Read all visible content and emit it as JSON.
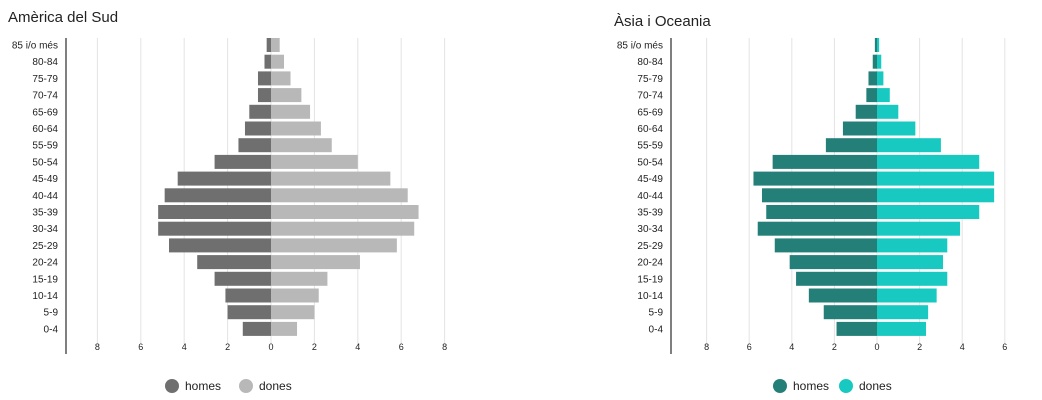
{
  "chart_data": [
    {
      "type": "bar",
      "subtype": "population-pyramid",
      "title": "Amèrica del Sud",
      "categories": [
        "85 i/o més",
        "80-84",
        "75-79",
        "70-74",
        "65-69",
        "60-64",
        "55-59",
        "50-54",
        "45-49",
        "40-44",
        "35-39",
        "30-34",
        "25-29",
        "20-24",
        "15-19",
        "10-14",
        "5-9",
        "0-4"
      ],
      "series": [
        {
          "name": "homes",
          "color": "#6f6f6f",
          "values": [
            0.2,
            0.3,
            0.6,
            0.6,
            1.0,
            1.2,
            1.5,
            2.6,
            4.3,
            4.9,
            5.2,
            5.2,
            4.7,
            3.4,
            2.6,
            2.1,
            2.0,
            1.3
          ]
        },
        {
          "name": "dones",
          "color": "#b8b8b8",
          "values": [
            0.4,
            0.6,
            0.9,
            1.4,
            1.8,
            2.3,
            2.8,
            4.0,
            5.5,
            6.3,
            6.8,
            6.6,
            5.8,
            4.1,
            2.6,
            2.2,
            2.0,
            1.2
          ]
        }
      ],
      "xticks": [
        8,
        6,
        4,
        2,
        0,
        2,
        4,
        6,
        8
      ],
      "xlim": [
        -8,
        8
      ],
      "grid": true,
      "legend": "bottom"
    },
    {
      "type": "bar",
      "subtype": "population-pyramid",
      "title": "Àsia i Oceania",
      "categories": [
        "85 i/o més",
        "80-84",
        "75-79",
        "70-74",
        "65-69",
        "60-64",
        "55-59",
        "50-54",
        "45-49",
        "40-44",
        "35-39",
        "30-34",
        "25-29",
        "20-24",
        "15-19",
        "10-14",
        "5-9",
        "0-4"
      ],
      "series": [
        {
          "name": "homes",
          "color": "#247f79",
          "values": [
            0.1,
            0.2,
            0.4,
            0.5,
            1.0,
            1.6,
            2.4,
            4.9,
            5.8,
            5.4,
            5.2,
            5.6,
            4.8,
            4.1,
            3.8,
            3.2,
            2.5,
            1.9
          ]
        },
        {
          "name": "dones",
          "color": "#17c9c1",
          "values": [
            0.1,
            0.2,
            0.3,
            0.6,
            1.0,
            1.8,
            3.0,
            4.8,
            5.5,
            5.5,
            4.8,
            3.9,
            3.3,
            3.1,
            3.3,
            2.8,
            2.4,
            2.3
          ]
        }
      ],
      "xticks": [
        8,
        6,
        4,
        2,
        0,
        2,
        4,
        6,
        8
      ],
      "xlim": [
        -8,
        8
      ],
      "grid": true,
      "legend": "bottom"
    }
  ]
}
